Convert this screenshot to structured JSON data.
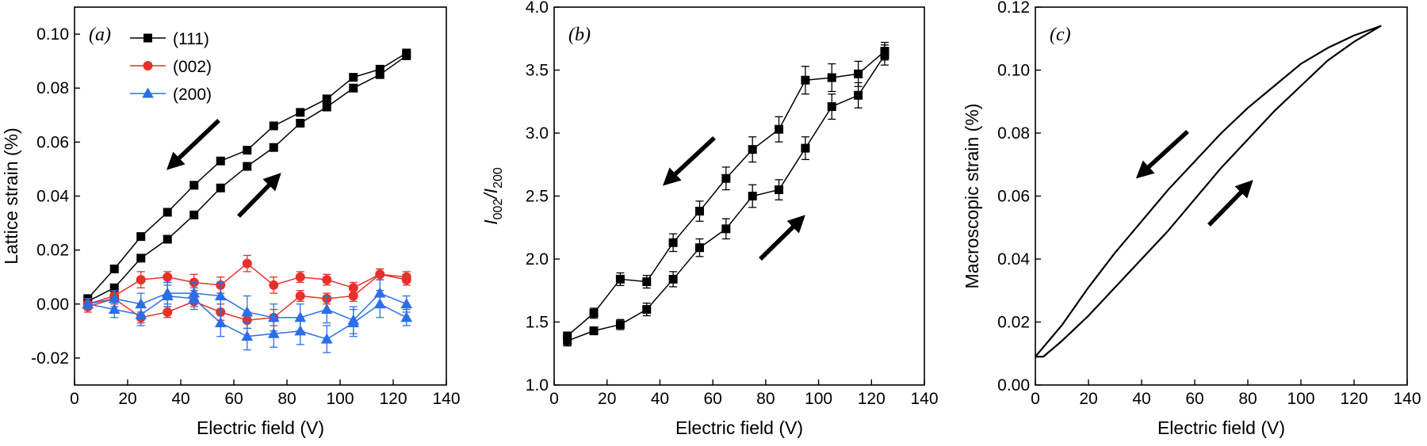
{
  "chart_data": [
    {
      "type": "line",
      "panel_label": "(a)",
      "x_label": "Electric field (V)",
      "y_label": "Lattice strain (%)",
      "legend": "upper left",
      "xlim": [
        0,
        140
      ],
      "xticks": [
        0,
        20,
        40,
        60,
        80,
        100,
        120,
        140
      ],
      "ylim": [
        -0.03,
        0.11
      ],
      "yticks": [
        {
          "value": -0.02,
          "label": "-0.02"
        },
        {
          "value": 0,
          "label": "0.00"
        },
        {
          "value": 0.02,
          "label": "0.02"
        },
        {
          "value": 0.04,
          "label": "0.04"
        },
        {
          "value": 0.06,
          "label": "0.06"
        },
        {
          "value": 0.08,
          "label": "0.08"
        },
        {
          "value": 0.1,
          "label": "0.10"
        }
      ],
      "series": [
        {
          "name": "(111)",
          "color": "#000000",
          "marker": "square",
          "x": [
            5,
            15,
            25,
            35,
            45,
            55,
            65,
            75,
            85,
            95,
            105,
            115,
            125,
            125,
            115,
            105,
            95,
            85,
            75,
            65,
            55,
            45,
            35,
            25,
            15,
            5
          ],
          "values": [
            0.001,
            0.006,
            0.017,
            0.024,
            0.033,
            0.043,
            0.051,
            0.058,
            0.067,
            0.073,
            0.08,
            0.085,
            0.092,
            0.093,
            0.087,
            0.084,
            0.076,
            0.071,
            0.066,
            0.057,
            0.053,
            0.044,
            0.034,
            0.025,
            0.013,
            0.002
          ],
          "errors": [
            0.001,
            0.001,
            0.001,
            0.001,
            0.001,
            0.001,
            0.001,
            0.001,
            0.001,
            0.001,
            0.001,
            0.001,
            0.001,
            0.001,
            0.001,
            0.001,
            0.001,
            0.001,
            0.001,
            0.001,
            0.001,
            0.001,
            0.001,
            0.001,
            0.001,
            0.001
          ]
        },
        {
          "name": "(002)",
          "color": "#e8302a",
          "marker": "circle",
          "x": [
            5,
            15,
            25,
            35,
            45,
            55,
            65,
            75,
            85,
            95,
            105,
            115,
            125,
            125,
            115,
            105,
            95,
            85,
            75,
            65,
            55,
            45,
            35,
            25,
            15,
            5
          ],
          "values": [
            -0.001,
            0.002,
            -0.005,
            -0.003,
            0.001,
            -0.003,
            -0.006,
            -0.005,
            0.003,
            0.002,
            0.003,
            0.011,
            0.009,
            0.01,
            0.011,
            0.006,
            0.009,
            0.01,
            0.007,
            0.015,
            0.007,
            0.008,
            0.01,
            0.009,
            0.003,
            0.0
          ],
          "errors": [
            0.002,
            0.002,
            0.002,
            0.002,
            0.002,
            0.003,
            0.003,
            0.003,
            0.002,
            0.002,
            0.002,
            0.002,
            0.002,
            0.002,
            0.002,
            0.002,
            0.002,
            0.002,
            0.003,
            0.003,
            0.003,
            0.003,
            0.002,
            0.003,
            0.002,
            0.002
          ]
        },
        {
          "name": "(200)",
          "color": "#2b6ee8",
          "marker": "triangle",
          "x": [
            5,
            15,
            25,
            35,
            45,
            55,
            65,
            75,
            85,
            95,
            105,
            115,
            125,
            125,
            115,
            105,
            95,
            85,
            75,
            65,
            55,
            45,
            35,
            25,
            15,
            5
          ],
          "values": [
            0.0,
            -0.002,
            -0.004,
            0.003,
            0.002,
            -0.007,
            -0.012,
            -0.011,
            -0.01,
            -0.013,
            -0.007,
            0.0,
            -0.005,
            0.0,
            0.004,
            -0.006,
            -0.002,
            -0.005,
            -0.005,
            -0.003,
            0.003,
            0.004,
            0.004,
            0.0,
            0.002,
            0.0
          ],
          "errors": [
            0.002,
            0.003,
            0.004,
            0.004,
            0.004,
            0.005,
            0.005,
            0.005,
            0.005,
            0.005,
            0.005,
            0.005,
            0.003,
            0.003,
            0.005,
            0.005,
            0.005,
            0.005,
            0.005,
            0.006,
            0.005,
            0.004,
            0.004,
            0.004,
            0.003,
            0.002
          ]
        }
      ]
    },
    {
      "type": "line",
      "panel_label": "(b)",
      "x_label": "Electric field (V)",
      "y_label": [
        "I",
        "002",
        "/I",
        "200"
      ],
      "xlim": [
        0,
        140
      ],
      "xticks": [
        0,
        20,
        40,
        60,
        80,
        100,
        120,
        140
      ],
      "ylim": [
        1,
        4
      ],
      "yticks": [
        {
          "value": 1,
          "label": "1.0"
        },
        {
          "value": 1.5,
          "label": "1.5"
        },
        {
          "value": 2,
          "label": "2.0"
        },
        {
          "value": 2.5,
          "label": "2.5"
        },
        {
          "value": 3,
          "label": "3.0"
        },
        {
          "value": 3.5,
          "label": "3.5"
        },
        {
          "value": 4,
          "label": "4.0"
        }
      ],
      "series": [
        {
          "color": "#000000",
          "marker": "square",
          "x": [
            5,
            15,
            25,
            35,
            45,
            55,
            65,
            75,
            85,
            95,
            105,
            115,
            125,
            125,
            115,
            105,
            95,
            85,
            75,
            65,
            55,
            45,
            35,
            25,
            15,
            5
          ],
          "values": [
            1.35,
            1.43,
            1.48,
            1.6,
            1.84,
            2.09,
            2.24,
            2.5,
            2.55,
            2.88,
            3.21,
            3.3,
            3.62,
            3.65,
            3.47,
            3.44,
            3.42,
            3.03,
            2.87,
            2.64,
            2.38,
            2.13,
            1.82,
            1.84,
            1.57,
            1.39
          ],
          "errors": [
            0.04,
            0.03,
            0.04,
            0.05,
            0.06,
            0.07,
            0.08,
            0.09,
            0.08,
            0.09,
            0.1,
            0.1,
            0.08,
            0.07,
            0.1,
            0.11,
            0.11,
            0.1,
            0.1,
            0.09,
            0.08,
            0.07,
            0.05,
            0.05,
            0.04,
            0.03
          ]
        }
      ]
    },
    {
      "type": "line",
      "panel_label": "(c)",
      "x_label": "Electric field (V)",
      "y_label": "Macroscopic strain (%)",
      "xlim": [
        0,
        140
      ],
      "xticks": [
        0,
        20,
        40,
        60,
        80,
        100,
        120,
        140
      ],
      "ylim": [
        0,
        0.12
      ],
      "yticks": [
        {
          "value": 0,
          "label": "0.00"
        },
        {
          "value": 0.02,
          "label": "0.02"
        },
        {
          "value": 0.04,
          "label": "0.04"
        },
        {
          "value": 0.06,
          "label": "0.06"
        },
        {
          "value": 0.08,
          "label": "0.08"
        },
        {
          "value": 0.1,
          "label": "0.10"
        },
        {
          "value": 0.12,
          "label": "0.12"
        }
      ],
      "series": [
        {
          "color": "#000000",
          "x": [
            0,
            3,
            10,
            20,
            30,
            40,
            50,
            60,
            70,
            80,
            90,
            100,
            110,
            120,
            130,
            120,
            110,
            100,
            90,
            80,
            70,
            60,
            50,
            40,
            30,
            20,
            10,
            3,
            0
          ],
          "values": [
            0.009,
            0.009,
            0.014,
            0.022,
            0.031,
            0.04,
            0.049,
            0.059,
            0.069,
            0.078,
            0.087,
            0.095,
            0.103,
            0.109,
            0.114,
            0.111,
            0.107,
            0.102,
            0.095,
            0.088,
            0.08,
            0.071,
            0.062,
            0.052,
            0.042,
            0.031,
            0.019,
            0.012,
            0.009
          ]
        }
      ]
    }
  ]
}
